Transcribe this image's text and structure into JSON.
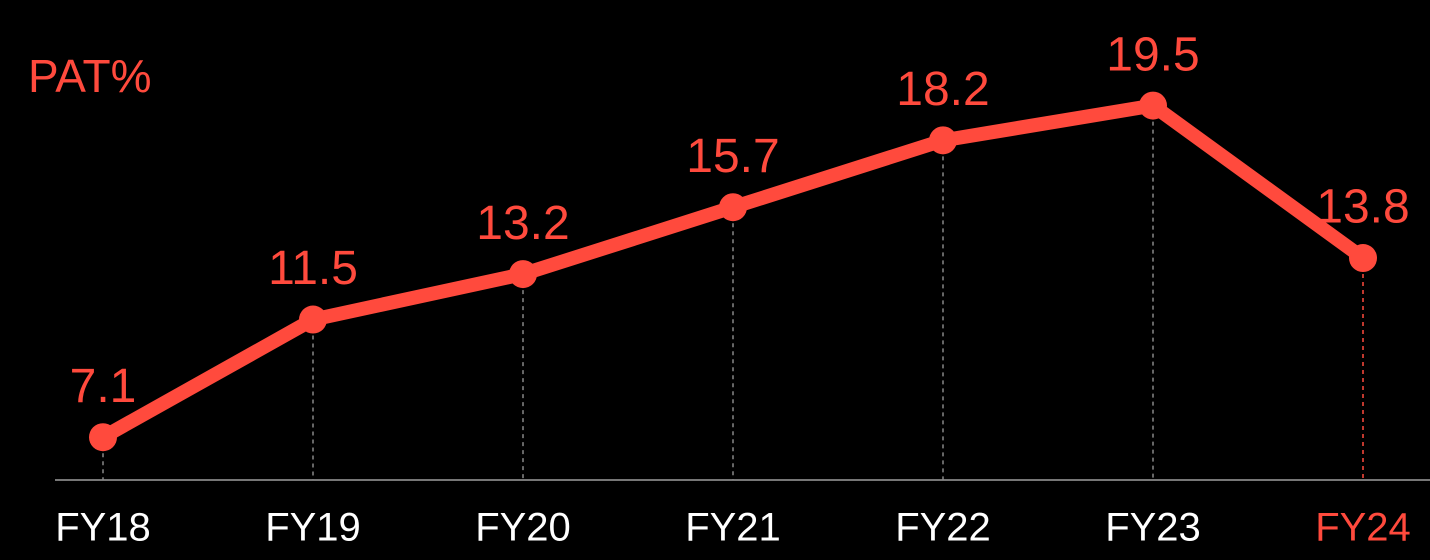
{
  "chart_data": {
    "type": "line",
    "title": "PAT%",
    "categories": [
      "FY18",
      "FY19",
      "FY20",
      "FY21",
      "FY22",
      "FY23",
      "FY24"
    ],
    "series": [
      {
        "name": "PAT%",
        "color": "#ff4a3d",
        "values": [
          7.1,
          11.5,
          13.2,
          15.7,
          18.2,
          19.5,
          13.8
        ]
      }
    ],
    "category_label_colors": [
      "#ffffff",
      "#ffffff",
      "#ffffff",
      "#ffffff",
      "#ffffff",
      "#ffffff",
      "#ff4a3d"
    ],
    "ylim": [
      5.5,
      23
    ],
    "data_labels": true,
    "background": "#000000"
  }
}
